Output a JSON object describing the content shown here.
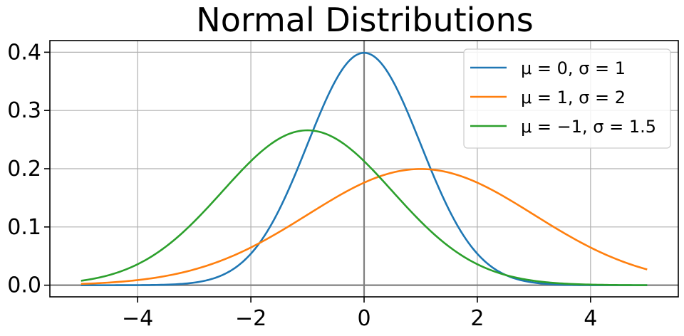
{
  "chart_data": {
    "type": "line",
    "title": "Normal Distributions",
    "xlabel": "",
    "ylabel": "",
    "xlim": [
      -5.55,
      5.55
    ],
    "ylim": [
      -0.02,
      0.42
    ],
    "x_ticks": [
      -4,
      -2,
      0,
      2,
      4
    ],
    "x_tick_labels": [
      "−4",
      "−2",
      "0",
      "2",
      "4"
    ],
    "y_ticks": [
      0.0,
      0.1,
      0.2,
      0.3,
      0.4
    ],
    "y_tick_labels": [
      "0.0",
      "0.1",
      "0.2",
      "0.3",
      "0.4"
    ],
    "grid": true,
    "zero_lines": true,
    "legend_position": "upper right",
    "x_range_plotted": [
      -5,
      5
    ],
    "series": [
      {
        "name": "μ = 0, σ = 1",
        "color": "#1f77b4",
        "mu": 0,
        "sigma": 1,
        "x": [
          -5,
          -4,
          -3,
          -2,
          -1.5,
          -1,
          -0.5,
          0,
          0.5,
          1,
          1.5,
          2,
          3,
          4,
          5
        ],
        "y": [
          0.0,
          0.0001,
          0.0044,
          0.054,
          0.1295,
          0.242,
          0.3521,
          0.3989,
          0.3521,
          0.242,
          0.1295,
          0.054,
          0.0044,
          0.0001,
          0.0
        ]
      },
      {
        "name": "μ = 1, σ = 2",
        "color": "#ff7f0e",
        "mu": 1,
        "sigma": 2,
        "x": [
          -5,
          -4,
          -3,
          -2,
          -1,
          0,
          1,
          2,
          3,
          4,
          5
        ],
        "y": [
          0.0022,
          0.0088,
          0.027,
          0.0648,
          0.121,
          0.176,
          0.1995,
          0.176,
          0.121,
          0.0648,
          0.027
        ]
      },
      {
        "name": "μ = −1, σ = 1.5",
        "color": "#2ca02c",
        "mu": -1,
        "sigma": 1.5,
        "x": [
          -5,
          -4,
          -3,
          -2,
          -1,
          0,
          1,
          2,
          3,
          4,
          5
        ],
        "y": [
          0.0076,
          0.036,
          0.1093,
          0.213,
          0.266,
          0.213,
          0.1093,
          0.036,
          0.0076,
          0.001,
          0.0001
        ]
      }
    ]
  }
}
